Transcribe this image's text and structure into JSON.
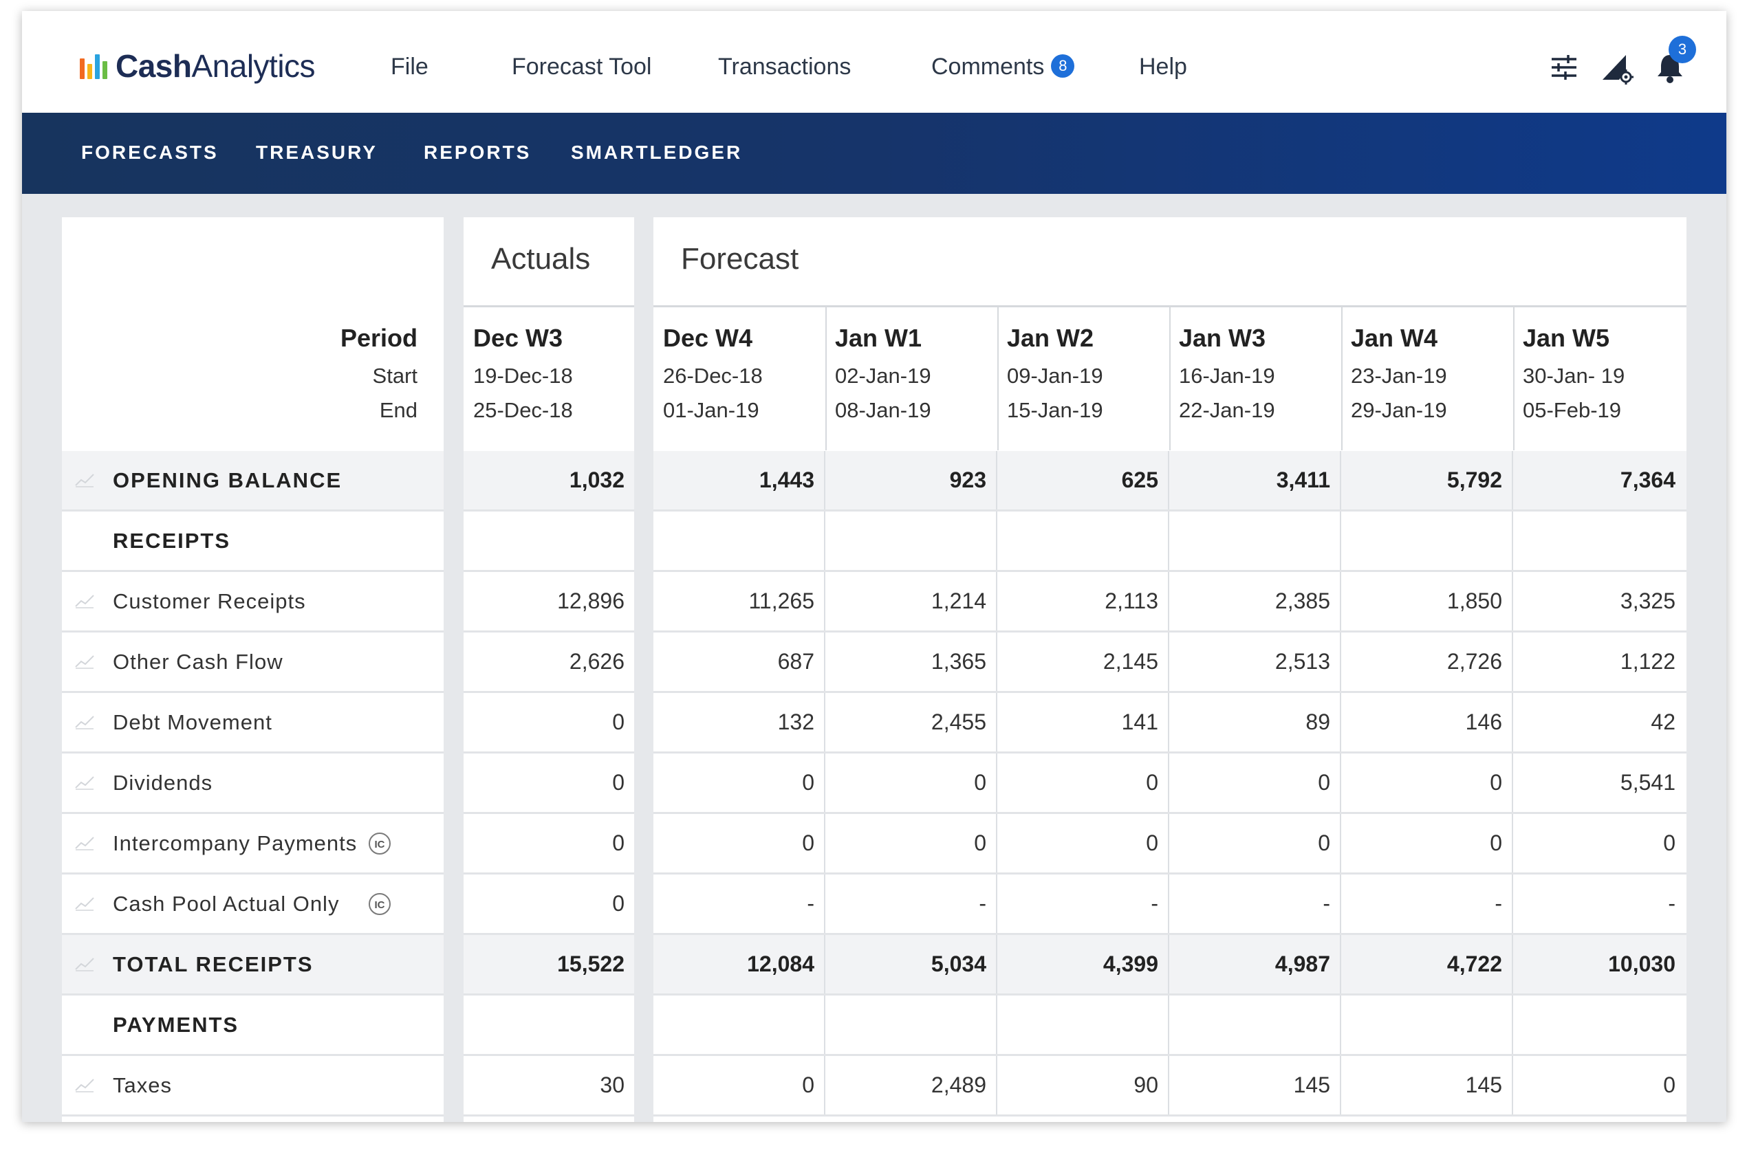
{
  "app": {
    "logo_bold": "Cash",
    "logo_light": "Analytics",
    "brand_colors": [
      "#f26a21",
      "#f7b51b",
      "#2aa3df",
      "#6bbd45"
    ]
  },
  "menu": {
    "file": "File",
    "forecast_tool": "Forecast Tool",
    "transactions": "Transactions",
    "comments": "Comments",
    "comments_count": "8",
    "help": "Help",
    "notifications_count": "3"
  },
  "nav": {
    "forecasts": "FORECASTS",
    "treasury": "TREASURY",
    "reports": "REPORTS",
    "smartledger": "SMARTLEDGER"
  },
  "table": {
    "actuals_title": "Actuals",
    "forecast_title": "Forecast",
    "period_label": "Period",
    "start_label": "Start",
    "end_label": "End",
    "periods": [
      {
        "name": "Dec W3",
        "start": "19-Dec-18",
        "end": "25-Dec-18"
      },
      {
        "name": "Dec W4",
        "start": "26-Dec-18",
        "end": "01-Jan-19"
      },
      {
        "name": "Jan W1",
        "start": "02-Jan-19",
        "end": "08-Jan-19"
      },
      {
        "name": "Jan W2",
        "start": "09-Jan-19",
        "end": "15-Jan-19"
      },
      {
        "name": "Jan W3",
        "start": "16-Jan-19",
        "end": "22-Jan-19"
      },
      {
        "name": "Jan W4",
        "start": "23-Jan-19",
        "end": "29-Jan-19"
      },
      {
        "name": "Jan W5",
        "start": "30-Jan- 19",
        "end": "05-Feb-19"
      }
    ],
    "rows": [
      {
        "label": "OPENING BALANCE",
        "bold": true,
        "trend": true,
        "ic": false,
        "values": [
          "1,032",
          "1,443",
          "923",
          "625",
          "3,411",
          "5,792",
          "7,364"
        ]
      },
      {
        "label": "RECEIPTS",
        "bold": false,
        "section": true,
        "trend": false,
        "ic": false,
        "values": [
          "",
          "",
          "",
          "",
          "",
          "",
          ""
        ]
      },
      {
        "label": "Customer Receipts",
        "bold": false,
        "trend": true,
        "ic": false,
        "values": [
          "12,896",
          "11,265",
          "1,214",
          "2,113",
          "2,385",
          "1,850",
          "3,325"
        ]
      },
      {
        "label": "Other Cash Flow",
        "bold": false,
        "trend": true,
        "ic": false,
        "values": [
          "2,626",
          "687",
          "1,365",
          "2,145",
          "2,513",
          "2,726",
          "1,122"
        ]
      },
      {
        "label": "Debt Movement",
        "bold": false,
        "trend": true,
        "ic": false,
        "values": [
          "0",
          "132",
          "2,455",
          "141",
          "89",
          "146",
          "42"
        ]
      },
      {
        "label": "Dividends",
        "bold": false,
        "trend": true,
        "ic": false,
        "values": [
          "0",
          "0",
          "0",
          "0",
          "0",
          "0",
          "5,541"
        ]
      },
      {
        "label": "Intercompany Payments",
        "bold": false,
        "trend": true,
        "ic": true,
        "ic_text": "IC",
        "values": [
          "0",
          "0",
          "0",
          "0",
          "0",
          "0",
          "0"
        ]
      },
      {
        "label": "Cash Pool Actual Only",
        "bold": false,
        "trend": true,
        "ic": true,
        "ic_text": "IC",
        "values": [
          "0",
          "-",
          "-",
          "-",
          "-",
          "-",
          "-"
        ]
      },
      {
        "label": "TOTAL RECEIPTS",
        "bold": true,
        "trend": true,
        "ic": false,
        "values": [
          "15,522",
          "12,084",
          "5,034",
          "4,399",
          "4,987",
          "4,722",
          "10,030"
        ]
      },
      {
        "label": "PAYMENTS",
        "bold": false,
        "section": true,
        "trend": false,
        "ic": false,
        "values": [
          "",
          "",
          "",
          "",
          "",
          "",
          ""
        ]
      },
      {
        "label": "Taxes",
        "bold": false,
        "trend": true,
        "ic": false,
        "values": [
          "30",
          "0",
          "2,489",
          "90",
          "145",
          "145",
          "0"
        ]
      }
    ]
  }
}
